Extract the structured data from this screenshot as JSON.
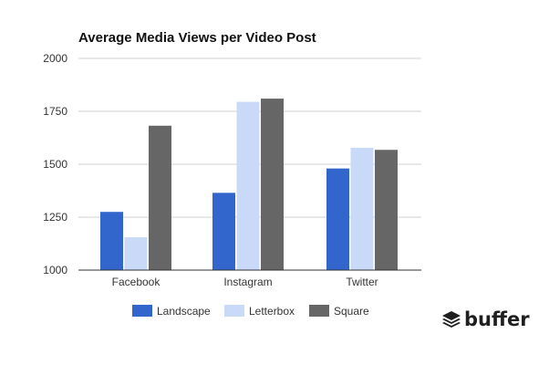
{
  "chart_data": {
    "type": "bar",
    "title": "Average Media Views per Video Post",
    "xlabel": "",
    "ylabel": "",
    "categories": [
      "Facebook",
      "Instagram",
      "Twitter"
    ],
    "series": [
      {
        "name": "Landscape",
        "color": "#3366cc",
        "values": [
          1275,
          1365,
          1480
        ]
      },
      {
        "name": "Letterbox",
        "color": "#c9daf8",
        "values": [
          1155,
          1795,
          1578
        ]
      },
      {
        "name": "Square",
        "color": "#666666",
        "values": [
          1682,
          1810,
          1568
        ]
      }
    ],
    "ylim": [
      1000,
      2000
    ],
    "yticks": [
      1000,
      1250,
      1500,
      1750,
      2000
    ],
    "grid": true,
    "legend_position": "bottom-center"
  },
  "brand": {
    "name": "buffer",
    "icon": "buffer-stack-icon"
  }
}
